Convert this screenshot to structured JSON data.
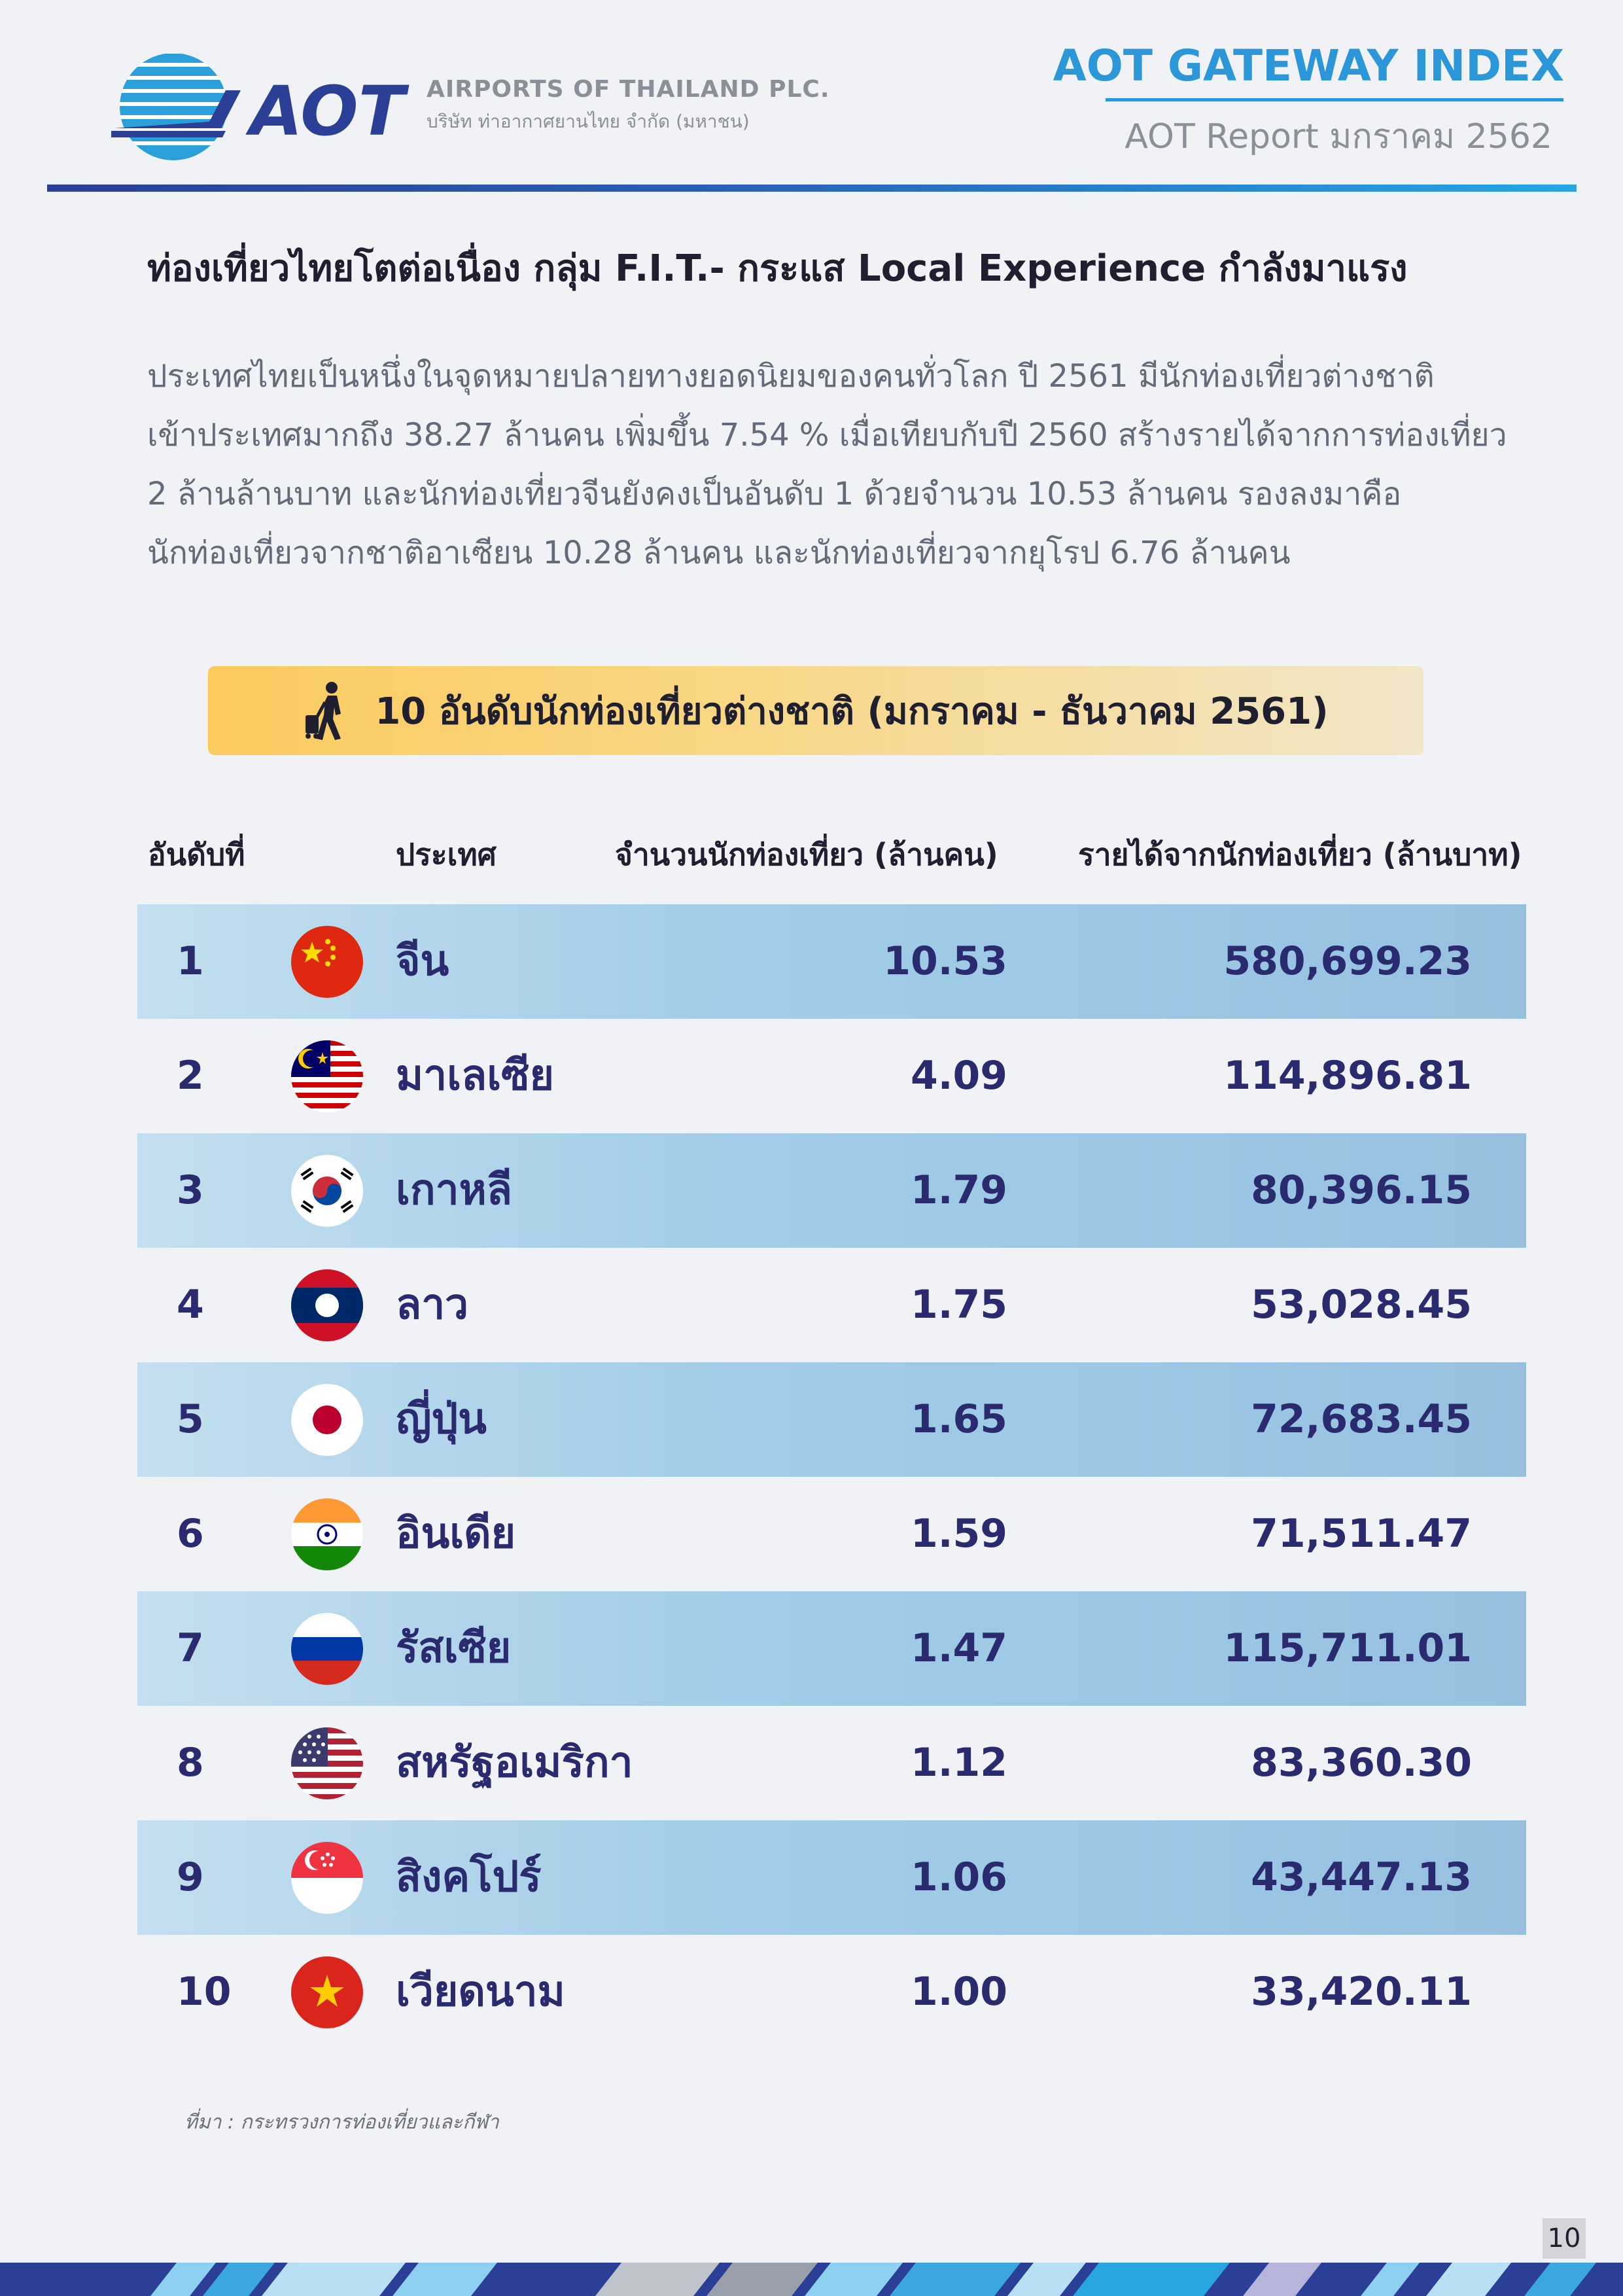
{
  "header": {
    "company_en": "AIRPORTS OF THAILAND PLC.",
    "company_th": "บริษัท ท่าอากาศยานไทย จำกัด (มหาชน)",
    "logo_text": "AOT",
    "gateway_title": "AOT GATEWAY INDEX",
    "report_label": "AOT Report  มกราคม 2562"
  },
  "article": {
    "headline": "ท่องเที่ยวไทยโตต่อเนื่อง กลุ่ม F.I.T.- กระแส Local Experience กำลังมาแรง",
    "lines": [
      "ประเทศไทยเป็นหนึ่งในจุดหมายปลายทางยอดนิยมของคนทั่วโลก ปี 2561 มีนักท่องเที่ยวต่างชาติ",
      "เข้าประเทศมากถึง 38.27 ล้านคน เพิ่มขึ้น 7.54 % เมื่อเทียบกับปี 2560 สร้างรายได้จากการท่องเที่ยว",
      "2 ล้านล้านบาท และนักท่องเที่ยวจีนยังคงเป็นอันดับ 1 ด้วยจำนวน 10.53 ล้านคน รองลงมาคือ",
      "นักท่องเที่ยวจากชาติอาเซียน 10.28 ล้านคน และนักท่องเที่ยวจากยุโรป 6.76 ล้านคน"
    ]
  },
  "banner": {
    "icon": "walking-traveler-icon",
    "title": "10 อันดับนักท่องเที่ยวต่างชาติ (มกราคม - ธันวาคม 2561)"
  },
  "table": {
    "headers": {
      "rank": "อันดับที่",
      "country": "ประเทศ",
      "count": "จำนวนนักท่องเที่ยว (ล้านคน)",
      "revenue": "รายได้จากนักท่องเที่ยว (ล้านบาท)"
    },
    "rows": [
      {
        "rank": "1",
        "flag": "china-flag-icon",
        "country": "จีน",
        "count": "10.53",
        "revenue": "580,699.23"
      },
      {
        "rank": "2",
        "flag": "malaysia-flag-icon",
        "country": "มาเลเซีย",
        "count": "4.09",
        "revenue": "114,896.81"
      },
      {
        "rank": "3",
        "flag": "korea-flag-icon",
        "country": "เกาหลี",
        "count": "1.79",
        "revenue": "80,396.15"
      },
      {
        "rank": "4",
        "flag": "laos-flag-icon",
        "country": "ลาว",
        "count": "1.75",
        "revenue": "53,028.45"
      },
      {
        "rank": "5",
        "flag": "japan-flag-icon",
        "country": "ญี่ปุ่น",
        "count": "1.65",
        "revenue": "72,683.45"
      },
      {
        "rank": "6",
        "flag": "india-flag-icon",
        "country": "อินเดีย",
        "count": "1.59",
        "revenue": "71,511.47"
      },
      {
        "rank": "7",
        "flag": "russia-flag-icon",
        "country": "รัสเซีย",
        "count": "1.47",
        "revenue": "115,711.01"
      },
      {
        "rank": "8",
        "flag": "usa-flag-icon",
        "country": "สหรัฐอเมริกา",
        "count": "1.12",
        "revenue": "83,360.30"
      },
      {
        "rank": "9",
        "flag": "singapore-flag-icon",
        "country": "สิงคโปร์",
        "count": "1.06",
        "revenue": "43,447.13"
      },
      {
        "rank": "10",
        "flag": "vietnam-flag-icon",
        "country": "เวียดนาม",
        "count": "1.00",
        "revenue": "33,420.11"
      }
    ]
  },
  "source": "ที่มา : กระทรวงการท่องเที่ยวและกีฬา",
  "page_number": "10",
  "colors": {
    "brand_blue": "#2b97d8",
    "navy": "#2a3f95",
    "row_band": "#a3cde7",
    "banner_yellow": "#fbcb5e"
  }
}
